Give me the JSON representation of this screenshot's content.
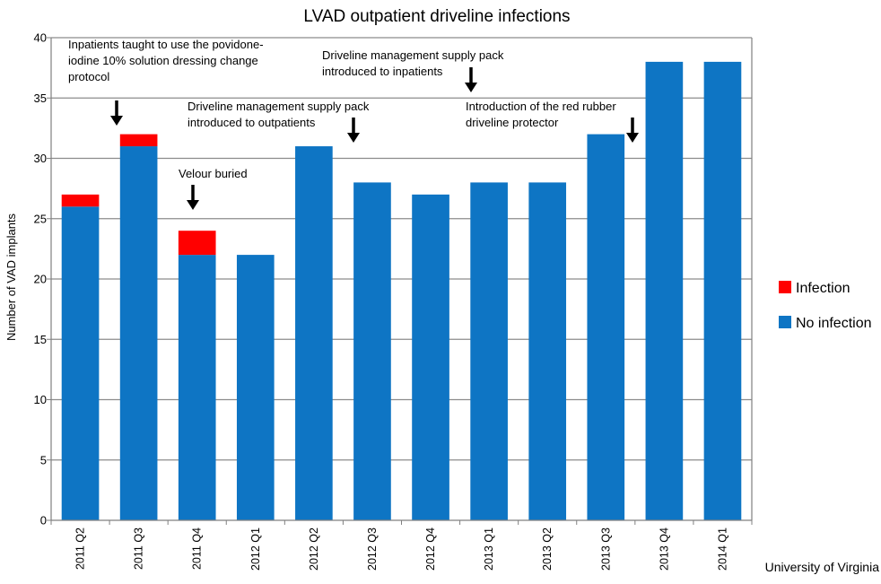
{
  "chart_data": {
    "type": "bar",
    "stacked": true,
    "title": "LVAD outpatient driveline infections",
    "xlabel": "",
    "ylabel": "Number of VAD implants",
    "ylim": [
      0,
      40
    ],
    "yticks": [
      0,
      5,
      10,
      15,
      20,
      25,
      30,
      35,
      40
    ],
    "grid": "horizontal",
    "legend_position": "right",
    "categories": [
      "2011 Q2",
      "2011 Q3",
      "2011 Q4",
      "2012 Q1",
      "2012 Q2",
      "2012 Q3",
      "2012 Q4",
      "2013 Q1",
      "2013 Q2",
      "2013 Q3",
      "2013 Q4",
      "2014 Q1"
    ],
    "series": [
      {
        "name": "No infection",
        "color": "#0e75c4",
        "values": [
          26,
          31,
          22,
          22,
          31,
          28,
          27,
          28,
          28,
          32,
          38,
          38
        ]
      },
      {
        "name": "Infection",
        "color": "#ff0000",
        "values": [
          1,
          1,
          2,
          0,
          0,
          0,
          0,
          0,
          0,
          0,
          0,
          0
        ]
      }
    ],
    "legend_order": [
      "Infection",
      "No infection"
    ],
    "annotations": [
      {
        "lines": [
          "Inpatients taught to use the povidone-",
          "iodine 10% solution dressing change",
          "protocol"
        ],
        "between": [
          0,
          1
        ]
      },
      {
        "lines": [
          "Velour buried"
        ],
        "between": [
          1,
          2
        ]
      },
      {
        "lines": [
          "Driveline management supply pack",
          "introduced to  outpatients"
        ],
        "between": [
          4,
          5
        ]
      },
      {
        "lines": [
          "Driveline management supply pack",
          "introduced to inpatients"
        ],
        "between": [
          6,
          7
        ]
      },
      {
        "lines": [
          "Introduction of the red rubber",
          "driveline protector"
        ],
        "between": [
          9,
          10
        ]
      }
    ]
  },
  "credit": "University of Virginia"
}
